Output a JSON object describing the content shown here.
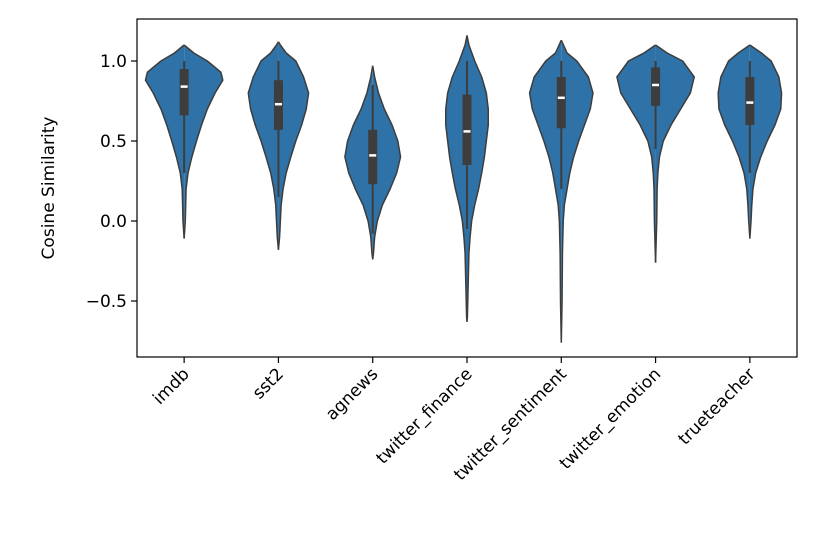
{
  "chart_data": {
    "type": "violin",
    "y_label": "Cosine Similarity",
    "categories": [
      "imdb",
      "sst2",
      "agnews",
      "twitter_finance",
      "twitter_sentiment",
      "twitter_emotion",
      "trueteacher"
    ],
    "color": "#2e72a8",
    "ylim": [
      -0.85,
      1.2625
    ],
    "yticks": [
      {
        "value": -0.5,
        "label": "−0.5"
      },
      {
        "value": 0,
        "label": "0.0"
      },
      0.5,
      {
        "value": 1,
        "label": "1.0"
      }
    ],
    "violins": [
      {
        "shape_y": [
          1.1,
          1.05,
          1.0,
          0.93,
          0.88,
          0.8,
          0.7,
          0.6,
          0.5,
          0.4,
          0.3,
          0.2,
          0.1,
          0.0,
          -0.11
        ],
        "shape_width": [
          0,
          0.25,
          0.6,
          0.95,
          1.0,
          0.8,
          0.6,
          0.45,
          0.32,
          0.2,
          0.1,
          0.05,
          0.04,
          0.03,
          0
        ],
        "whisker": [
          0.3,
          1.0
        ],
        "q1": 0.66,
        "median": 0.84,
        "q3": 0.95
      },
      {
        "shape_y": [
          1.12,
          1.1,
          1.05,
          1.0,
          0.9,
          0.8,
          0.7,
          0.6,
          0.5,
          0.4,
          0.3,
          0.2,
          0.1,
          0.0,
          -0.1,
          -0.18
        ],
        "shape_width": [
          0,
          0.05,
          0.2,
          0.45,
          0.65,
          0.78,
          0.72,
          0.6,
          0.45,
          0.32,
          0.2,
          0.12,
          0.07,
          0.05,
          0.03,
          0
        ],
        "whisker": [
          0.15,
          1.0
        ],
        "q1": 0.57,
        "median": 0.73,
        "q3": 0.88
      },
      {
        "shape_y": [
          0.97,
          0.9,
          0.8,
          0.7,
          0.6,
          0.5,
          0.4,
          0.3,
          0.2,
          0.1,
          0.0,
          -0.1,
          -0.2,
          -0.24
        ],
        "shape_width": [
          0,
          0.05,
          0.15,
          0.3,
          0.5,
          0.65,
          0.72,
          0.62,
          0.45,
          0.25,
          0.12,
          0.05,
          0.02,
          0
        ],
        "whisker": [
          -0.08,
          0.85
        ],
        "q1": 0.23,
        "median": 0.41,
        "q3": 0.57
      },
      {
        "shape_y": [
          1.16,
          1.1,
          1.0,
          0.9,
          0.8,
          0.7,
          0.6,
          0.5,
          0.4,
          0.3,
          0.2,
          0.1,
          0.0,
          -0.1,
          -0.2,
          -0.4,
          -0.6,
          -0.63
        ],
        "shape_width": [
          0,
          0.05,
          0.2,
          0.38,
          0.5,
          0.55,
          0.55,
          0.5,
          0.45,
          0.38,
          0.3,
          0.2,
          0.12,
          0.08,
          0.05,
          0.03,
          0.01,
          0
        ],
        "whisker": [
          -0.05,
          1.0
        ],
        "q1": 0.35,
        "median": 0.56,
        "q3": 0.79
      },
      {
        "shape_y": [
          1.13,
          1.05,
          1.0,
          0.9,
          0.8,
          0.7,
          0.6,
          0.5,
          0.4,
          0.3,
          0.2,
          0.1,
          0.0,
          -0.2,
          -0.5,
          -0.76
        ],
        "shape_width": [
          0,
          0.15,
          0.4,
          0.7,
          0.82,
          0.75,
          0.6,
          0.45,
          0.32,
          0.22,
          0.15,
          0.08,
          0.05,
          0.03,
          0.02,
          0
        ],
        "whisker": [
          0.2,
          1.0
        ],
        "q1": 0.58,
        "median": 0.77,
        "q3": 0.9
      },
      {
        "shape_y": [
          1.1,
          1.05,
          1.0,
          0.9,
          0.8,
          0.7,
          0.6,
          0.5,
          0.4,
          0.3,
          0.2,
          0.0,
          -0.26
        ],
        "shape_width": [
          0,
          0.3,
          0.7,
          1.0,
          0.9,
          0.65,
          0.4,
          0.2,
          0.1,
          0.06,
          0.04,
          0.03,
          0
        ],
        "whisker": [
          0.45,
          1.0
        ],
        "q1": 0.72,
        "median": 0.85,
        "q3": 0.96
      },
      {
        "shape_y": [
          1.1,
          1.05,
          1.0,
          0.9,
          0.8,
          0.7,
          0.6,
          0.5,
          0.4,
          0.3,
          0.2,
          0.1,
          0.0,
          -0.11
        ],
        "shape_width": [
          0,
          0.3,
          0.55,
          0.75,
          0.82,
          0.8,
          0.65,
          0.45,
          0.28,
          0.15,
          0.08,
          0.05,
          0.03,
          0
        ],
        "whisker": [
          0.3,
          1.0
        ],
        "q1": 0.6,
        "median": 0.74,
        "q3": 0.9
      }
    ]
  }
}
